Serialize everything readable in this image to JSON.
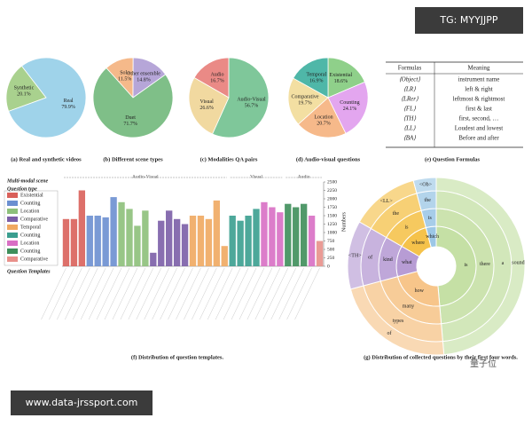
{
  "chart_data": [
    {
      "type": "pie",
      "caption": "(a) Real and synthetic videos",
      "categories": [
        "Synthetic",
        "Real"
      ],
      "values": [
        20.1,
        79.9
      ],
      "value_labels": [
        "20.1%",
        "79.9%"
      ],
      "colors": [
        "#a9d18e",
        "#9fd3ea"
      ]
    },
    {
      "type": "pie",
      "caption": "(b) Different scene types",
      "categories": [
        "Solo",
        "Other ensemble",
        "Duet"
      ],
      "values": [
        11.5,
        14.8,
        71.7
      ],
      "value_labels": [
        "11.5%",
        "14.8%",
        "71.7%"
      ],
      "colors": [
        "#f5b98a",
        "#b6a6d8",
        "#7fbf88"
      ]
    },
    {
      "type": "pie",
      "caption": "(c) Modalities QA pairs",
      "categories": [
        "Audio",
        "Audio-Visual",
        "Visual"
      ],
      "values": [
        16.7,
        56.7,
        26.6
      ],
      "value_labels": [
        "16.7%",
        "56.7%",
        "26.6%"
      ],
      "colors": [
        "#ea8a86",
        "#7fc79a",
        "#f1d9a0"
      ]
    },
    {
      "type": "pie",
      "caption": "(d) Audio-visual questions",
      "categories": [
        "Existential",
        "Counting",
        "Location",
        "Comparative",
        "Temporal"
      ],
      "values": [
        18.6,
        24.1,
        20.7,
        19.7,
        16.9
      ],
      "value_labels": [
        "18.6%",
        "24.1%",
        "20.7%",
        "19.7%",
        "16.9%"
      ],
      "colors": [
        "#8fd08a",
        "#e3a6ef",
        "#f6b98a",
        "#f3dfa2",
        "#4fb7a8"
      ]
    },
    {
      "type": "bar",
      "caption": "(f) Distribution of question templates.",
      "title": "Multi-modal scene",
      "legend_title": "Question type",
      "x_label": "Question Templates",
      "y_label": "Numbers",
      "groups": [
        "Audio-Visual",
        "Visual",
        "Audio"
      ],
      "legend": [
        {
          "name": "Existential",
          "color": "#d9605a"
        },
        {
          "name": "Counting",
          "color": "#6b8fd0"
        },
        {
          "name": "Location",
          "color": "#8dc07a"
        },
        {
          "name": "Comparative",
          "color": "#7b5ea7"
        },
        {
          "name": "Temporal",
          "color": "#f0a860"
        },
        {
          "name": "Counting",
          "color": "#3a9e8f"
        },
        {
          "name": "Location",
          "color": "#d86fc4"
        },
        {
          "name": "Counting",
          "color": "#3e8e5a"
        },
        {
          "name": "Comparative",
          "color": "#e8908a"
        }
      ],
      "categories": [
        null,
        null,
        null,
        null,
        null,
        null,
        null,
        null,
        null,
        null,
        null,
        null,
        null,
        null,
        null,
        null,
        null,
        null,
        null,
        null,
        null,
        null,
        null,
        null,
        null,
        null,
        null,
        null,
        null,
        null,
        null,
        null,
        null
      ],
      "values": [
        1400,
        1400,
        2250,
        1500,
        1500,
        1450,
        2050,
        1900,
        1700,
        1200,
        1650,
        400,
        1350,
        1650,
        1400,
        1250,
        1500,
        1500,
        1400,
        1950,
        600,
        1500,
        1350,
        1500,
        1700,
        1900,
        1750,
        1600,
        1850,
        1750,
        1850,
        1500,
        750
      ],
      "colors": [
        "#d9605a",
        "#d9605a",
        "#d9605a",
        "#6b8fd0",
        "#6b8fd0",
        "#6b8fd0",
        "#6b8fd0",
        "#8dc07a",
        "#8dc07a",
        "#8dc07a",
        "#8dc07a",
        "#7b5ea7",
        "#7b5ea7",
        "#7b5ea7",
        "#7b5ea7",
        "#7b5ea7",
        "#f0a860",
        "#f0a860",
        "#f0a860",
        "#f0a860",
        "#f0a860",
        "#3a9e8f",
        "#3a9e8f",
        "#3a9e8f",
        "#3a9e8f",
        "#d86fc4",
        "#d86fc4",
        "#d86fc4",
        "#3e8e5a",
        "#3e8e5a",
        "#3e8e5a",
        "#d86fc4",
        "#e8908a"
      ],
      "ylim": [
        0,
        2500
      ],
      "yticks": [
        0,
        250,
        500,
        750,
        1000,
        1250,
        1500,
        1750,
        2000,
        2250,
        2500
      ]
    }
  ],
  "table": {
    "caption": "(e) Question Formulas",
    "header": [
      "Formulas",
      "Meaning"
    ],
    "rows": [
      [
        "⟨Object⟩",
        "instrument name"
      ],
      [
        "⟨LR⟩",
        "left & right"
      ],
      [
        "⟨LRer⟩",
        "leftmost & rightmost"
      ],
      [
        "⟨FL⟩",
        "first & last"
      ],
      [
        "⟨TH⟩",
        "first, second, …"
      ],
      [
        "⟨LL⟩",
        "Loudest and lowest"
      ],
      [
        "⟨BA⟩",
        "Before and after"
      ]
    ]
  },
  "sunburst": {
    "caption": "(g) Distribution of collected questions by their first four words.",
    "sectors": [
      {
        "color": "#c5e0a5",
        "words": [
          "is",
          "there",
          "a",
          "sound"
        ]
      },
      {
        "color": "#f7c58a",
        "words": [
          "how",
          "many",
          "types",
          "of"
        ]
      },
      {
        "color": "#b79cd4",
        "words": [
          "what",
          "kind",
          "of",
          "<TH>"
        ]
      },
      {
        "color": "#f5c24a",
        "words": [
          "where",
          "is",
          "the",
          "<LL>"
        ]
      },
      {
        "color": "#9cc7e6",
        "words": [
          "which",
          "is",
          "the",
          "<Ob>"
        ]
      }
    ]
  },
  "watermarks": {
    "top": "TG: MYYJJPP",
    "bottom": "www.data-jrssport.com",
    "logo": "量子位"
  }
}
